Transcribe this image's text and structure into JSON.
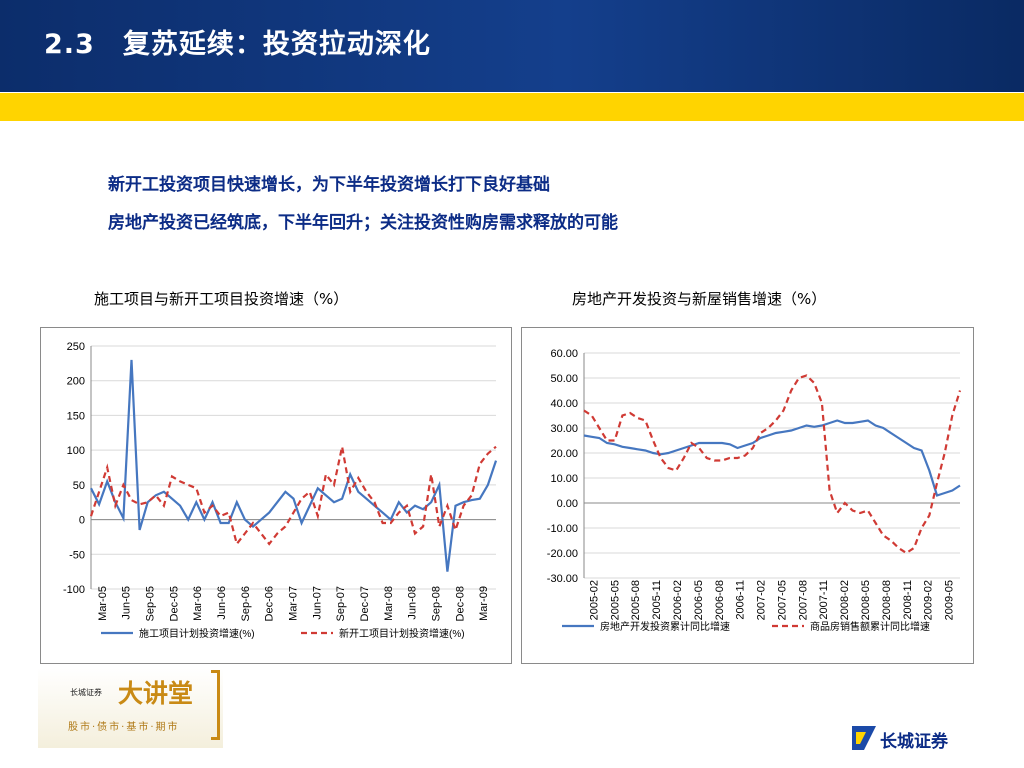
{
  "header": {
    "title": "2.3　复苏延续：投资拉动深化"
  },
  "bullets": [
    "新开工投资项目快速增长，为下半年投资增长打下良好基础",
    "房地产投资已经筑底，下半年回升；关注投资性购房需求释放的可能"
  ],
  "chart_titles": {
    "left": "施工项目与新开工项目投资增速（%）",
    "right": "房地产开发投资与新屋销售增速（%）"
  },
  "chart_data": [
    {
      "type": "line",
      "title": "施工项目与新开工项目投资增速（%）",
      "ylim": [
        -100,
        250
      ],
      "yticks": [
        250,
        200,
        150,
        100,
        50,
        0,
        -50,
        -100
      ],
      "xtick_labels": [
        "Mar-05",
        "Jun-05",
        "Sep-05",
        "Dec-05",
        "Mar-06",
        "Jun-06",
        "Sep-06",
        "Dec-06",
        "Mar-07",
        "Jun-07",
        "Sep-07",
        "Dec-07",
        "Mar-08",
        "Jun-08",
        "Sep-08",
        "Dec-08",
        "Mar-09"
      ],
      "legend_position": "bottom",
      "grid": true,
      "series": [
        {
          "name": "施工项目计划投资增速(%)",
          "color": "#4677c0",
          "dash": "solid",
          "values": [
            45,
            22,
            55,
            25,
            2,
            230,
            -15,
            25,
            35,
            40,
            30,
            20,
            0,
            25,
            0,
            25,
            -5,
            -5,
            25,
            0,
            -10,
            0,
            10,
            25,
            40,
            30,
            -5,
            20,
            45,
            35,
            25,
            30,
            65,
            40,
            30,
            20,
            10,
            0,
            25,
            10,
            20,
            15,
            25,
            50,
            -75,
            20,
            25,
            28,
            30,
            50,
            85
          ]
        },
        {
          "name": "新开工项目计划投资增速(%)",
          "color": "#d03a34",
          "dash": "dashed",
          "values": [
            5,
            40,
            75,
            20,
            50,
            28,
            22,
            25,
            35,
            20,
            62,
            55,
            50,
            45,
            10,
            20,
            5,
            10,
            -35,
            -20,
            -5,
            -20,
            -35,
            -20,
            -10,
            10,
            30,
            40,
            5,
            65,
            50,
            105,
            40,
            60,
            40,
            25,
            -5,
            -5,
            10,
            20,
            -20,
            -10,
            65,
            -10,
            20,
            -15,
            20,
            35,
            80,
            95,
            105
          ]
        }
      ]
    },
    {
      "type": "line",
      "title": "房地产开发投资与新屋销售增速（%）",
      "ylim": [
        -30,
        60
      ],
      "yticks": [
        "60.00",
        "50.00",
        "40.00",
        "30.00",
        "20.00",
        "10.00",
        "0.00",
        "-10.00",
        "-20.00",
        "-30.00"
      ],
      "xtick_labels": [
        "2005-02",
        "2005-05",
        "2005-08",
        "2005-11",
        "2006-02",
        "2006-05",
        "2006-08",
        "2006-11",
        "2007-02",
        "2007-05",
        "2007-08",
        "2007-11",
        "2008-02",
        "2008-05",
        "2008-08",
        "2008-11",
        "2009-02",
        "2009-05"
      ],
      "legend_position": "bottom",
      "grid": true,
      "series": [
        {
          "name": "房地产开发投资累计同比增速",
          "color": "#4677c0",
          "dash": "solid",
          "values": [
            27,
            26.5,
            26,
            24,
            23.5,
            22.5,
            22,
            21.5,
            21,
            20,
            19.5,
            20,
            21,
            22,
            23,
            24,
            24,
            24,
            24,
            23.5,
            22,
            23,
            24,
            26,
            27,
            28,
            28.5,
            29,
            30,
            31,
            30.5,
            31,
            32,
            33,
            32,
            32,
            32.5,
            33,
            31,
            30,
            28,
            26,
            24,
            22,
            21,
            13,
            3,
            4,
            5,
            7
          ]
        },
        {
          "name": "商品房销售额累计同比增速",
          "color": "#d03a34",
          "dash": "dashed",
          "values": [
            37,
            35,
            30,
            25,
            25,
            35,
            36,
            34,
            33,
            25,
            18,
            14,
            13,
            18,
            24,
            22,
            18,
            17,
            17,
            18,
            18,
            19,
            22,
            28,
            30,
            33,
            37,
            45,
            50,
            51,
            48,
            40,
            5,
            -4,
            0,
            -3,
            -4,
            -3,
            -8,
            -13,
            -15,
            -18,
            -20,
            -18,
            -10,
            -5,
            8,
            20,
            35,
            45
          ]
        }
      ]
    }
  ],
  "logo": {
    "main_text": "大讲堂",
    "small_text": "长城证券",
    "tagline": "股市·债市·基市·期市"
  },
  "brand": {
    "name": "长城证券"
  }
}
